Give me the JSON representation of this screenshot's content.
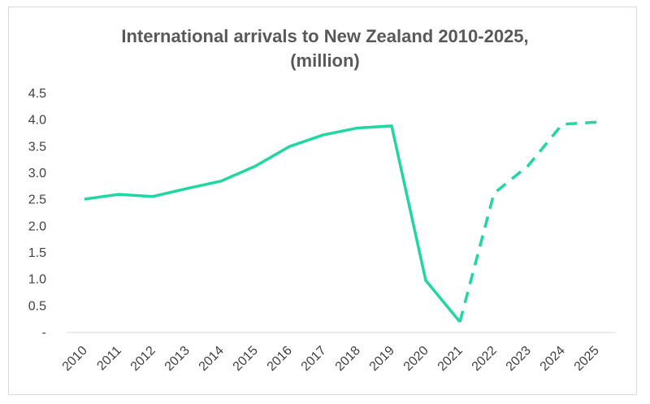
{
  "chart_data": {
    "type": "line",
    "title_line1": "International arrivals to New Zealand 2010-2025,",
    "title_line2": "(million)",
    "xlabel": "",
    "ylabel": "",
    "categories": [
      "2010",
      "2011",
      "2012",
      "2013",
      "2014",
      "2015",
      "2016",
      "2017",
      "2018",
      "2019",
      "2020",
      "2021",
      "2022",
      "2023",
      "2024",
      "2025"
    ],
    "series": [
      {
        "actual_values": [
          2.51,
          2.6,
          2.56,
          2.71,
          2.85,
          3.13,
          3.5,
          3.72,
          3.85,
          3.89,
          0.98,
          0.2
        ],
        "forecast_values": [
          0.2,
          2.62,
          3.14,
          3.92,
          3.96
        ],
        "forecast_start_index": 11,
        "color": "#20d6a1"
      }
    ],
    "ylim": [
      0,
      4.5
    ],
    "yticks": [
      {
        "value": 0,
        "label": "-"
      },
      {
        "value": 0.5,
        "label": "0.5"
      },
      {
        "value": 1.0,
        "label": "1.0"
      },
      {
        "value": 1.5,
        "label": "1.5"
      },
      {
        "value": 2.0,
        "label": "2.0"
      },
      {
        "value": 2.5,
        "label": "2.5"
      },
      {
        "value": 3.0,
        "label": "3.0"
      },
      {
        "value": 3.5,
        "label": "3.5"
      },
      {
        "value": 4.0,
        "label": "4.0"
      },
      {
        "value": 4.5,
        "label": "4.5"
      }
    ],
    "grid": false,
    "legend": "none"
  }
}
